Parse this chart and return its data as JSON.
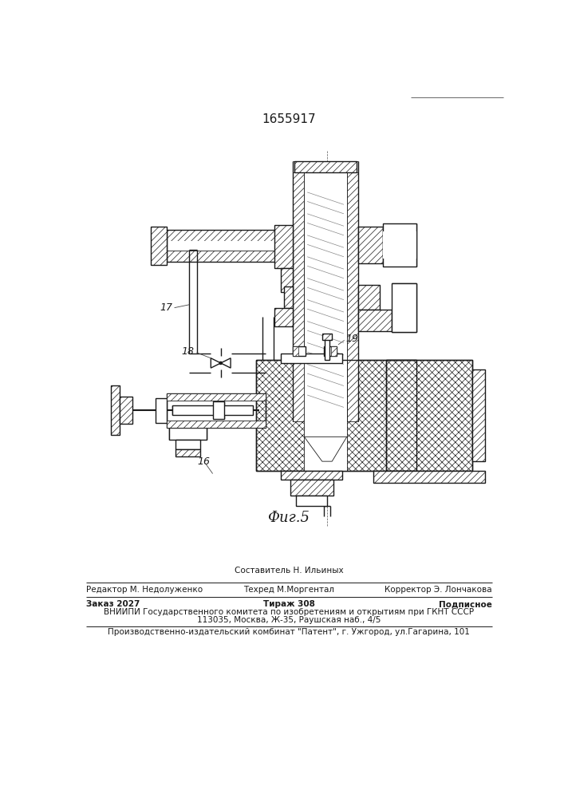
{
  "patent_number": "1655917",
  "fig_label": "Фиг.5",
  "editor_line": "Редактор М. Недолуженко",
  "composer_line": "Составитель Н. Ильиных",
  "techred_line": "Техред М.Моргентал",
  "corrector_line": "Корректор Э. Лончакова",
  "order_line": "Заказ 2027",
  "tirazh_line": "Тираж 308",
  "podpisnoe_line": "Подписное",
  "vniiipi_line": "ВНИИПИ Государственного комитета по изобретениям и открытиям при ГКНТ СССР",
  "address_line": "113035, Москва, Ж-35, Раушская наб., 4/5",
  "factory_line": "Производственно-издательский комбинат \"Патент\", г. Ужгород, ул.Гагарина, 101",
  "bg_color": "#ffffff",
  "line_color": "#1a1a1a"
}
